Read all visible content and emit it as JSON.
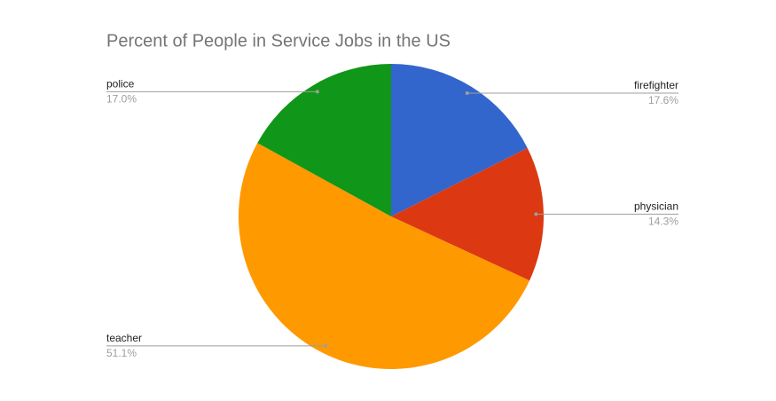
{
  "chart_data": {
    "type": "pie",
    "title": "Percent of People in Service Jobs in the US",
    "categories": [
      "firefighter",
      "physician",
      "teacher",
      "police"
    ],
    "values": [
      17.6,
      14.3,
      51.1,
      17.0
    ],
    "value_labels": [
      "17.6%",
      "14.3%",
      "51.1%",
      "17.0%"
    ],
    "colors": [
      "#3366cc",
      "#dc3912",
      "#ff9900",
      "#109618"
    ]
  }
}
